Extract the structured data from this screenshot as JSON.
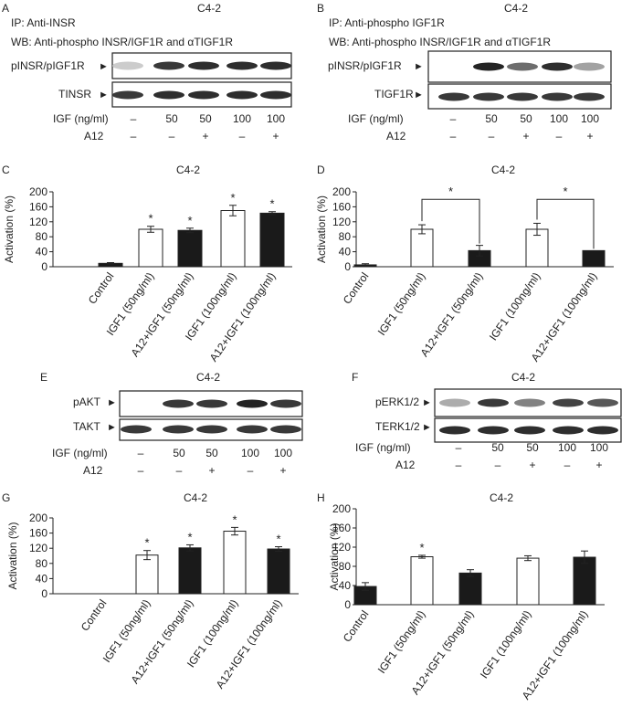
{
  "blots": {
    "A": {
      "letter": "A",
      "cell": "C4-2",
      "ip_line": "IP: Anti-INSR",
      "wb_line": "WB: Anti-phospho INSR/IGF1R and αTIGF1R",
      "top_label": "pINSR/pIGF1R",
      "bottom_label": "TINSR",
      "top_intensity": [
        0.15,
        0.85,
        0.9,
        0.9,
        0.9
      ],
      "bottom_intensity": [
        0.85,
        0.9,
        0.9,
        0.9,
        0.9
      ]
    },
    "B": {
      "letter": "B",
      "cell": "C4-2",
      "ip_line": "IP: Anti-phospho IGF1R",
      "wb_line": "WB: Anti-phospho INSR/IGF1R and αTIGF1R",
      "top_label": "pINSR/pIGF1R",
      "bottom_label": "TIGF1R",
      "top_intensity": [
        0.0,
        0.95,
        0.6,
        0.9,
        0.35
      ],
      "bottom_intensity": [
        0.85,
        0.85,
        0.85,
        0.85,
        0.85
      ]
    },
    "E": {
      "letter": "E",
      "cell": "C4-2",
      "top_label": "pAKT",
      "bottom_label": "TAKT",
      "top_intensity": [
        0.0,
        0.85,
        0.85,
        0.95,
        0.85
      ],
      "bottom_intensity": [
        0.85,
        0.85,
        0.85,
        0.85,
        0.85
      ]
    },
    "F": {
      "letter": "F",
      "cell": "C4-2",
      "top_label": "pERK1/2",
      "bottom_label": "TERK1/2",
      "top_intensity": [
        0.3,
        0.85,
        0.5,
        0.8,
        0.7
      ],
      "bottom_intensity": [
        0.9,
        0.9,
        0.9,
        0.9,
        0.9
      ]
    }
  },
  "treatment_table": {
    "igf_label": "IGF (ng/ml)",
    "a12_label": "A12",
    "igf_values": [
      "–",
      "50",
      "50",
      "100",
      "100"
    ],
    "a12_values": [
      "–",
      "–",
      "+",
      "–",
      "+"
    ]
  },
  "chart_data": [
    {
      "panel": "C",
      "type": "bar",
      "title": "C4-2",
      "ylabel": "Activation (%)",
      "ylim": [
        0,
        200
      ],
      "yticks": [
        0,
        40,
        80,
        120,
        160,
        200
      ],
      "categories": [
        "Control",
        "IGF1 (50ng/ml)",
        "A12+IGF1 (50ng/ml)",
        "IGF1 (100ng/ml)",
        "A12+IGF1 (100ng/ml)"
      ],
      "values": [
        9,
        100,
        97,
        150,
        143
      ],
      "errors": [
        2,
        8,
        6,
        14,
        4
      ],
      "fills": [
        "black",
        "white",
        "black",
        "white",
        "black"
      ],
      "significance": [
        "",
        "*",
        "*",
        "*",
        "*"
      ],
      "brackets": []
    },
    {
      "panel": "D",
      "type": "bar",
      "title": "C4-2",
      "ylabel": "Activation (%)",
      "ylim": [
        0,
        200
      ],
      "yticks": [
        0,
        40,
        80,
        120,
        160,
        200
      ],
      "categories": [
        "Control",
        "IGF1 (50ng/ml)",
        "A12+IGF1 (50ng/ml)",
        "IGF1 (100ng/ml)",
        "A12+IGF1 (100ng/ml)"
      ],
      "values": [
        5,
        100,
        43,
        100,
        43
      ],
      "errors": [
        3,
        12,
        14,
        16,
        0
      ],
      "fills": [
        "black",
        "white",
        "black",
        "white",
        "black"
      ],
      "significance": [
        "",
        "",
        "",
        "",
        ""
      ],
      "brackets": [
        {
          "from": 1,
          "to": 2,
          "label": "*"
        },
        {
          "from": 3,
          "to": 4,
          "label": "*"
        }
      ]
    },
    {
      "panel": "G",
      "type": "bar",
      "title": "C4-2",
      "ylabel": "Activation (%)",
      "ylim": [
        0,
        200
      ],
      "yticks": [
        0,
        40,
        80,
        120,
        160,
        200
      ],
      "categories": [
        "Control",
        "IGF1 (50ng/ml)",
        "A12+IGF1 (50ng/ml)",
        "IGF1 (100ng/ml)",
        "A12+IGF1 (100ng/ml)"
      ],
      "values": [
        0,
        102,
        121,
        165,
        118
      ],
      "errors": [
        0,
        12,
        8,
        10,
        6
      ],
      "fills": [
        "black",
        "white",
        "black",
        "white",
        "black"
      ],
      "significance": [
        "",
        "*",
        "*",
        "*",
        "*"
      ],
      "brackets": []
    },
    {
      "panel": "H",
      "type": "bar",
      "title": "C4-2",
      "ylabel": "Activation (%)",
      "ylim": [
        0,
        200
      ],
      "yticks": [
        0,
        40,
        80,
        120,
        160,
        200
      ],
      "categories": [
        "Control",
        "IGF1 (50ng/ml)",
        "A12+IGF1 (50ng/ml)",
        "IGF1 (100ng/ml)",
        "A12+IGF1 (100ng/ml)"
      ],
      "values": [
        38,
        100,
        66,
        97,
        99
      ],
      "errors": [
        8,
        3,
        7,
        5,
        13
      ],
      "fills": [
        "black",
        "white",
        "black",
        "white",
        "black"
      ],
      "significance": [
        "",
        "*",
        "",
        "",
        ""
      ],
      "brackets": []
    }
  ]
}
